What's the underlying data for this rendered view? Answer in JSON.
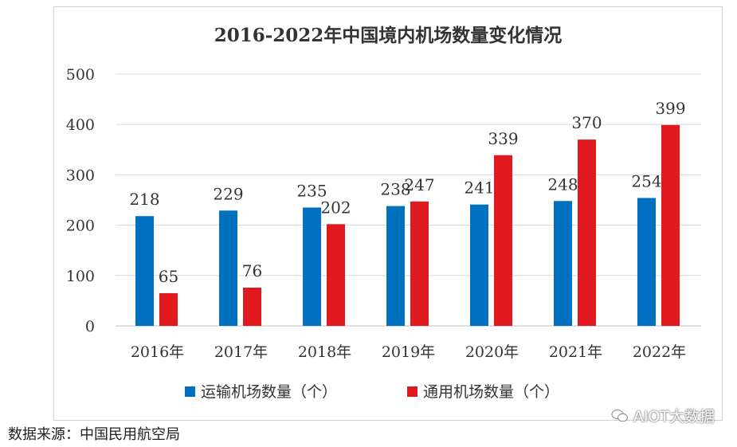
{
  "chart_data": {
    "type": "bar",
    "title": "2016-2022年中国境内机场数量变化情况",
    "categories": [
      "2016年",
      "2017年",
      "2018年",
      "2019年",
      "2020年",
      "2021年",
      "2022年"
    ],
    "series": [
      {
        "name": "运输机场数量（个）",
        "color": "#0070c0",
        "values": [
          218,
          229,
          235,
          238,
          241,
          248,
          254
        ]
      },
      {
        "name": "通用机场数量（个）",
        "color": "#e0191f",
        "values": [
          65,
          76,
          202,
          247,
          339,
          370,
          399
        ]
      }
    ],
    "yticks": [
      "0",
      "100",
      "200",
      "300",
      "400",
      "500"
    ],
    "ylim": [
      0,
      500
    ],
    "grid": true,
    "legend_position": "bottom"
  },
  "source_text": "数据来源：中国民用航空局",
  "watermark_text": "AIOT大数据"
}
